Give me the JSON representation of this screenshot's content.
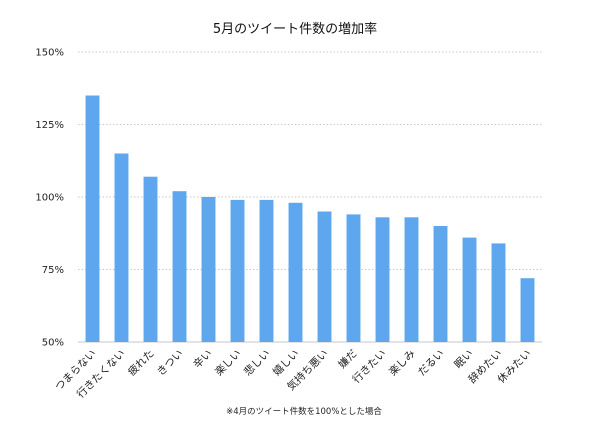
{
  "chart_data": {
    "type": "bar",
    "title": "5月のツイート件数の増加率",
    "xlabel": "",
    "ylabel": "",
    "categories": [
      "つまらない",
      "行きたくない",
      "疲れた",
      "きつい",
      "辛い",
      "楽しい",
      "悲しい",
      "嬉しい",
      "気持ち悪い",
      "嫌だ",
      "行きたい",
      "楽しみ",
      "だるい",
      "眠い",
      "辞めたい",
      "休みたい"
    ],
    "values": [
      135,
      115,
      107,
      102,
      100,
      99,
      99,
      98,
      95,
      94,
      93,
      93,
      90,
      86,
      84,
      72
    ],
    "ylim": [
      50,
      150
    ],
    "yticks": [
      50,
      75,
      100,
      125,
      150
    ],
    "ytick_labels": [
      "50%",
      "75%",
      "100%",
      "125%",
      "150%"
    ],
    "grid": true,
    "bar_color": "#5ea7ee",
    "grid_color": "#b5b5b5",
    "legend": "none",
    "annotation": "※4月のツイート件数を100%とした場合"
  }
}
